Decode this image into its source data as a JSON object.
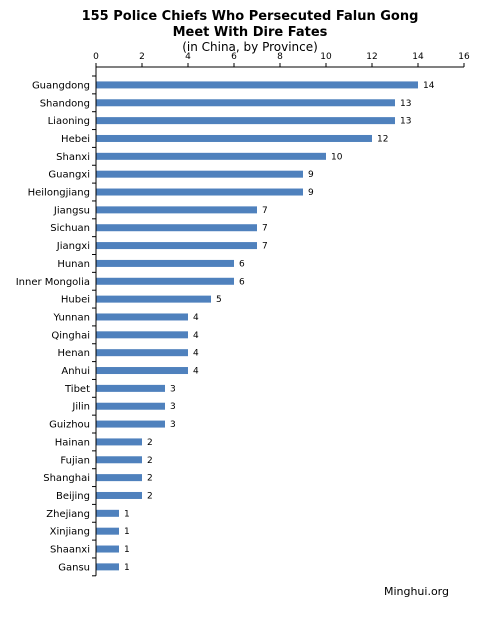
{
  "chart_data": {
    "type": "bar",
    "orientation": "horizontal",
    "title": [
      "155 Police Chiefs Who Persecuted Falun Gong",
      "Meet With Dire Fates"
    ],
    "subtitle": "(in China, by Province)",
    "source": "Minghui.org",
    "xlim": [
      0,
      16
    ],
    "xticks": [
      0,
      2,
      4,
      6,
      8,
      10,
      12,
      14,
      16
    ],
    "x_axis_position": "top",
    "grid": false,
    "bar_color": "#4f81bd",
    "categories": [
      "Guangdong",
      "Shandong",
      "Liaoning",
      "Hebei",
      "Shanxi",
      "Guangxi",
      "Heilongjiang",
      "Jiangsu",
      "Sichuan",
      "Jiangxi",
      "Hunan",
      "Inner Mongolia",
      "Hubei",
      "Yunnan",
      "Qinghai",
      "Henan",
      "Anhui",
      "Tibet",
      "Jilin",
      "Guizhou",
      "Hainan",
      "Fujian",
      "Shanghai",
      "Beijing",
      "Zhejiang",
      "Xinjiang",
      "Shaanxi",
      "Gansu"
    ],
    "values": [
      14,
      13,
      13,
      12,
      10,
      9,
      9,
      7,
      7,
      7,
      6,
      6,
      5,
      4,
      4,
      4,
      4,
      3,
      3,
      3,
      2,
      2,
      2,
      2,
      1,
      1,
      1,
      1
    ]
  }
}
